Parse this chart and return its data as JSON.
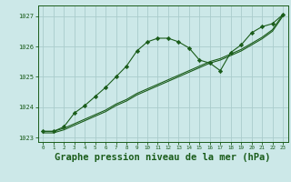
{
  "background_color": "#cce8e8",
  "grid_color": "#aacccc",
  "line_color": "#1a5c1a",
  "marker_color": "#1a5c1a",
  "title": "Graphe pression niveau de la mer (hPa)",
  "title_fontsize": 7.5,
  "xlim": [
    -0.5,
    23.5
  ],
  "ylim": [
    1022.85,
    1027.35
  ],
  "yticks": [
    1023,
    1024,
    1025,
    1026,
    1027
  ],
  "xticks": [
    0,
    1,
    2,
    3,
    4,
    5,
    6,
    7,
    8,
    9,
    10,
    11,
    12,
    13,
    14,
    15,
    16,
    17,
    18,
    19,
    20,
    21,
    22,
    23
  ],
  "series1_x": [
    0,
    1,
    2,
    3,
    4,
    5,
    6,
    7,
    8,
    9,
    10,
    11,
    12,
    13,
    14,
    15,
    16,
    17,
    18,
    19,
    20,
    21,
    22,
    23
  ],
  "series1_y": [
    1023.2,
    1023.2,
    1023.35,
    1023.8,
    1024.05,
    1024.35,
    1024.65,
    1025.0,
    1025.35,
    1025.85,
    1026.15,
    1026.27,
    1026.27,
    1026.15,
    1025.95,
    1025.55,
    1025.45,
    1025.2,
    1025.8,
    1026.05,
    1026.45,
    1026.65,
    1026.75,
    1027.05
  ],
  "series2_x": [
    0,
    1,
    2,
    3,
    4,
    5,
    6,
    7,
    8,
    9,
    10,
    11,
    12,
    13,
    14,
    15,
    16,
    17,
    18,
    19,
    20,
    21,
    22,
    23
  ],
  "series2_y": [
    1023.2,
    1023.2,
    1023.3,
    1023.45,
    1023.6,
    1023.75,
    1023.9,
    1024.1,
    1024.25,
    1024.45,
    1024.6,
    1024.75,
    1024.9,
    1025.05,
    1025.2,
    1025.35,
    1025.5,
    1025.6,
    1025.75,
    1025.9,
    1026.1,
    1026.3,
    1026.55,
    1027.05
  ],
  "series3_x": [
    0,
    1,
    2,
    3,
    4,
    5,
    6,
    7,
    8,
    9,
    10,
    11,
    12,
    13,
    14,
    15,
    16,
    17,
    18,
    19,
    20,
    21,
    22,
    23
  ],
  "series3_y": [
    1023.15,
    1023.15,
    1023.25,
    1023.4,
    1023.55,
    1023.7,
    1023.85,
    1024.05,
    1024.2,
    1024.4,
    1024.55,
    1024.7,
    1024.85,
    1025.0,
    1025.15,
    1025.3,
    1025.45,
    1025.55,
    1025.7,
    1025.85,
    1026.05,
    1026.25,
    1026.5,
    1027.0
  ]
}
